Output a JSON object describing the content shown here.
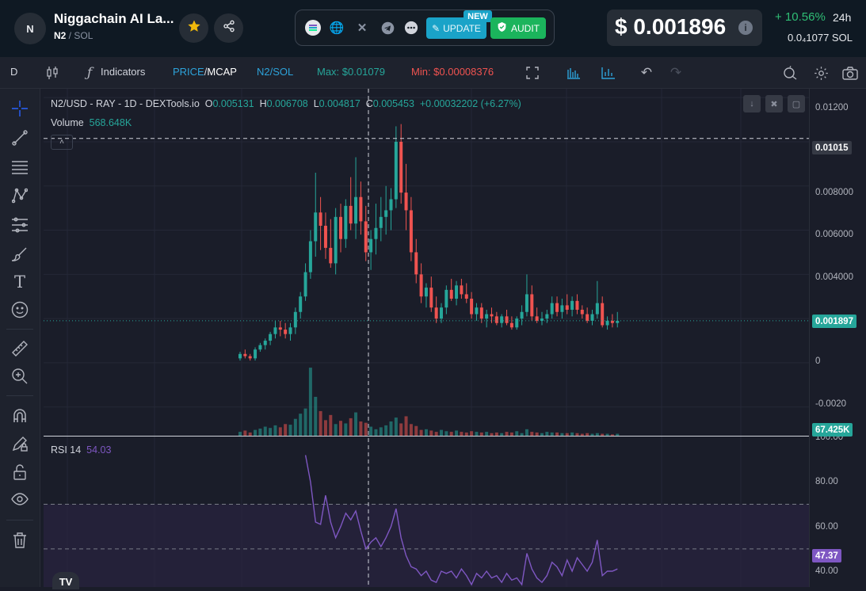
{
  "header": {
    "avatar_letter": "N",
    "token_name": "Niggachain AI La...",
    "pair_base": "N2",
    "pair_quote": "SOL",
    "update_label": "UPDATE",
    "new_badge": "NEW",
    "audit_label": "AUDIT",
    "price": "$ 0.001896",
    "change": "+ 10.56%",
    "change_timeframe": "24h",
    "sol_price": "0.0₄1077 SOL"
  },
  "toolbar": {
    "interval": "D",
    "indicators_label": "Indicators",
    "price_label": "PRICE",
    "mcap_label": "MCAP",
    "pair_label": "N2/SOL",
    "max_label": "Max: $0.01079",
    "min_label": "Min: $0.00008376"
  },
  "legend": {
    "symbol": "N2/USD - RAY - 1D - DEXTools.io",
    "open_key": "O",
    "open": "0.005131",
    "high_key": "H",
    "high": "0.006708",
    "low_key": "L",
    "low": "0.004817",
    "close_key": "C",
    "close": "0.005453",
    "change": "+0.00032202 (+6.27%)",
    "volume_label": "Volume",
    "volume_value": "568.648K",
    "rsi_label": "RSI 14",
    "rsi_value": "54.03"
  },
  "axis": {
    "price_ticks": [
      "0.01200",
      "0.008000",
      "0.006000",
      "0.004000",
      "0",
      "-0.0020"
    ],
    "rsi_ticks": [
      "100.00",
      "80.00",
      "60.00",
      "40.00"
    ],
    "crosshair_price": "0.01015",
    "last_price": "0.001897",
    "last_volume": "67.425K",
    "last_rsi": "47.37"
  },
  "colors": {
    "up": "#26a69a",
    "down": "#ef5350",
    "rsi": "#7e57c2",
    "change_positive": "#2fbd75",
    "update_button": "#1aa3c8",
    "audit_button": "#1bb45c",
    "max_text": "#26a69a",
    "min_text": "#ef5350",
    "accent": "#2962ff"
  },
  "chart_data": {
    "type": "candlestick",
    "title": "N2/USD - RAY - 1D - DEXTools.io",
    "ylim": [
      -0.0033,
      0.0124
    ],
    "candles": [
      [
        0.0002,
        0.0005,
        0.0001,
        0.0004
      ],
      [
        0.0004,
        0.0006,
        0.0002,
        0.0003
      ],
      [
        0.0003,
        0.0004,
        0.0001,
        0.0002
      ],
      [
        0.0002,
        0.0007,
        0.0001,
        0.0006
      ],
      [
        0.0006,
        0.0009,
        0.0005,
        0.0008
      ],
      [
        0.0008,
        0.0011,
        0.0006,
        0.001
      ],
      [
        0.001,
        0.0014,
        0.0008,
        0.0013
      ],
      [
        0.0013,
        0.0019,
        0.0011,
        0.0016
      ],
      [
        0.0016,
        0.0019,
        0.0012,
        0.0015
      ],
      [
        0.0015,
        0.0018,
        0.0011,
        0.0013
      ],
      [
        0.0013,
        0.0018,
        0.001,
        0.0016
      ],
      [
        0.0016,
        0.0025,
        0.0013,
        0.0023
      ],
      [
        0.0023,
        0.0032,
        0.002,
        0.003
      ],
      [
        0.003,
        0.0045,
        0.0028,
        0.0041
      ],
      [
        0.0041,
        0.006,
        0.0038,
        0.0055
      ],
      [
        0.0055,
        0.0086,
        0.0048,
        0.0068
      ],
      [
        0.0068,
        0.0075,
        0.0051,
        0.0062
      ],
      [
        0.0062,
        0.0068,
        0.0047,
        0.0052
      ],
      [
        0.0052,
        0.0065,
        0.0043,
        0.0045
      ],
      [
        0.0045,
        0.007,
        0.004,
        0.0066
      ],
      [
        0.0066,
        0.0072,
        0.005,
        0.0056
      ],
      [
        0.0056,
        0.0074,
        0.0052,
        0.0071
      ],
      [
        0.0071,
        0.0084,
        0.006,
        0.0063
      ],
      [
        0.0063,
        0.0093,
        0.0056,
        0.0075
      ],
      [
        0.0075,
        0.0082,
        0.0058,
        0.0064
      ],
      [
        0.0064,
        0.0071,
        0.0046,
        0.005
      ],
      [
        0.005,
        0.006,
        0.0042,
        0.0056
      ],
      [
        0.0056,
        0.0072,
        0.0049,
        0.0061
      ],
      [
        0.0061,
        0.0075,
        0.0055,
        0.0066
      ],
      [
        0.0066,
        0.008,
        0.0058,
        0.0069
      ],
      [
        0.0069,
        0.0079,
        0.006,
        0.0074
      ],
      [
        0.0074,
        0.0107,
        0.007,
        0.01
      ],
      [
        0.01,
        0.0108,
        0.0072,
        0.0077
      ],
      [
        0.0077,
        0.009,
        0.006,
        0.0069
      ],
      [
        0.0069,
        0.0075,
        0.0046,
        0.005
      ],
      [
        0.005,
        0.0056,
        0.0036,
        0.004
      ],
      [
        0.004,
        0.0045,
        0.0027,
        0.003
      ],
      [
        0.003,
        0.0036,
        0.0025,
        0.0034
      ],
      [
        0.0034,
        0.0039,
        0.0023,
        0.0025
      ],
      [
        0.0025,
        0.003,
        0.0018,
        0.002
      ],
      [
        0.002,
        0.0027,
        0.0018,
        0.0025
      ],
      [
        0.0025,
        0.0035,
        0.0022,
        0.0033
      ],
      [
        0.0033,
        0.0038,
        0.0028,
        0.0029
      ],
      [
        0.0029,
        0.0037,
        0.0026,
        0.0035
      ],
      [
        0.0035,
        0.0038,
        0.0029,
        0.0031
      ],
      [
        0.0031,
        0.0036,
        0.0027,
        0.0029
      ],
      [
        0.0029,
        0.0032,
        0.002,
        0.0022
      ],
      [
        0.0022,
        0.0027,
        0.0019,
        0.0025
      ],
      [
        0.0025,
        0.0027,
        0.0018,
        0.002
      ],
      [
        0.002,
        0.0024,
        0.0016,
        0.0022
      ],
      [
        0.0022,
        0.0025,
        0.0018,
        0.0021
      ],
      [
        0.0021,
        0.0023,
        0.0017,
        0.0018
      ],
      [
        0.0018,
        0.0022,
        0.0016,
        0.0021
      ],
      [
        0.0021,
        0.0024,
        0.0017,
        0.0018
      ],
      [
        0.0018,
        0.0021,
        0.0015,
        0.0016
      ],
      [
        0.0016,
        0.0021,
        0.0015,
        0.002
      ],
      [
        0.002,
        0.0026,
        0.0017,
        0.0023
      ],
      [
        0.0023,
        0.004,
        0.0021,
        0.0031
      ],
      [
        0.0031,
        0.0035,
        0.0019,
        0.0021
      ],
      [
        0.0021,
        0.0025,
        0.0018,
        0.0019
      ],
      [
        0.0019,
        0.0023,
        0.0017,
        0.002
      ],
      [
        0.002,
        0.0024,
        0.0018,
        0.0022
      ],
      [
        0.0022,
        0.003,
        0.002,
        0.0027
      ],
      [
        0.0027,
        0.003,
        0.0021,
        0.0023
      ],
      [
        0.0023,
        0.0029,
        0.002,
        0.0026
      ],
      [
        0.0026,
        0.0031,
        0.0022,
        0.0024
      ],
      [
        0.0024,
        0.003,
        0.0021,
        0.0028
      ],
      [
        0.0028,
        0.0031,
        0.0022,
        0.0024
      ],
      [
        0.0024,
        0.0026,
        0.002,
        0.0022
      ],
      [
        0.0022,
        0.0025,
        0.0018,
        0.0019
      ],
      [
        0.0019,
        0.0024,
        0.0017,
        0.0022
      ],
      [
        0.0022,
        0.0037,
        0.002,
        0.0027
      ],
      [
        0.0027,
        0.003,
        0.0016,
        0.0017
      ],
      [
        0.0017,
        0.0021,
        0.0015,
        0.0019
      ],
      [
        0.0019,
        0.0022,
        0.0016,
        0.0018
      ],
      [
        0.0018,
        0.0023,
        0.0016,
        0.0019
      ]
    ],
    "volume_scale_max": 11,
    "volumes": [
      0.6,
      0.8,
      0.5,
      0.9,
      1.1,
      1.4,
      1.2,
      1.6,
      1.3,
      1.8,
      1.7,
      2.6,
      3.4,
      4.2,
      10.5,
      6.0,
      3.8,
      2.4,
      3.2,
      1.8,
      2.3,
      1.9,
      2.7,
      3.6,
      2.2,
      2.0,
      1.4,
      1.0,
      1.3,
      1.6,
      2.2,
      2.8,
      1.9,
      3.0,
      1.8,
      1.5,
      0.9,
      1.0,
      0.8,
      0.6,
      0.9,
      0.7,
      0.6,
      0.8,
      0.6,
      0.5,
      0.7,
      0.6,
      0.5,
      0.6,
      0.4,
      0.5,
      0.4,
      0.6,
      0.5,
      0.7,
      0.4,
      1.0,
      0.6,
      0.5,
      0.4,
      0.6,
      0.5,
      0.5,
      0.4,
      0.4,
      0.5,
      0.4,
      0.3,
      0.4,
      0.3,
      0.4,
      0.3,
      0.3,
      0.2,
      0.3
    ],
    "rsi": [
      null,
      null,
      null,
      null,
      null,
      null,
      null,
      null,
      null,
      null,
      null,
      null,
      null,
      92,
      80,
      62,
      61,
      74,
      62,
      55,
      60,
      66,
      63,
      67,
      58,
      50,
      53,
      55,
      51,
      55,
      60,
      68,
      55,
      47,
      42,
      41,
      38,
      40,
      36,
      35,
      40,
      39,
      40,
      37,
      41,
      38,
      34,
      39,
      37,
      40,
      37,
      38,
      35,
      39,
      36,
      37,
      34,
      48,
      41,
      37,
      35,
      38,
      44,
      42,
      38,
      45,
      40,
      46,
      43,
      40,
      44,
      54,
      38,
      40,
      40,
      41
    ]
  }
}
